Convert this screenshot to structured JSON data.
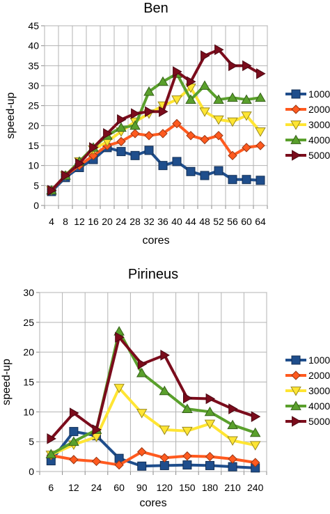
{
  "chart_data": [
    {
      "type": "line",
      "title": "Ben",
      "xlabel": "cores",
      "ylabel": "speed-up",
      "ylim": [
        0,
        45
      ],
      "ytick_step": 5,
      "grid": true,
      "legend_position": "right",
      "categories": [
        "4",
        "8",
        "12",
        "16",
        "20",
        "24",
        "28",
        "32",
        "36",
        "40",
        "44",
        "48",
        "52",
        "56",
        "60",
        "64"
      ],
      "series": [
        {
          "name": "1000",
          "color": "#1f4e8c",
          "marker": "square",
          "values": [
            3.5,
            7,
            9.5,
            11.5,
            14.5,
            13.5,
            12.5,
            13.8,
            10,
            11,
            8.5,
            7.5,
            8.7,
            6.5,
            6.5,
            6.3
          ]
        },
        {
          "name": "2000",
          "color": "#ff5a1f",
          "marker": "diamond",
          "values": [
            3.8,
            7.5,
            10,
            12.5,
            15,
            16,
            18,
            17.5,
            18,
            20.5,
            17.5,
            16.5,
            17.5,
            12.5,
            14.5,
            15
          ]
        },
        {
          "name": "3000",
          "color": "#ffe533",
          "marker": "triangle-down",
          "values": [
            3.8,
            7.5,
            11,
            14,
            16,
            18.5,
            21,
            23,
            25,
            26.5,
            29.5,
            23.5,
            21.5,
            21,
            22.5,
            18.5
          ]
        },
        {
          "name": "4000",
          "color": "#5aa02c",
          "marker": "triangle-up",
          "values": [
            3.8,
            7.5,
            11,
            14.5,
            17.5,
            19.5,
            20,
            28.5,
            31,
            33,
            26.5,
            30,
            26.5,
            27,
            26.5,
            27
          ]
        },
        {
          "name": "5000",
          "color": "#7b0c1c",
          "marker": "triangle-right",
          "values": [
            3.8,
            7.5,
            10.5,
            14.5,
            18,
            21.5,
            23,
            23.5,
            23.5,
            33.5,
            31,
            37.5,
            39,
            35,
            35,
            33
          ]
        }
      ]
    },
    {
      "type": "line",
      "title": "Pirineus",
      "xlabel": "cores",
      "ylabel": "speed-up",
      "ylim": [
        0,
        30
      ],
      "ytick_step": 5,
      "grid": true,
      "legend_position": "right",
      "categories": [
        "6",
        "12",
        "24",
        "60",
        "90",
        "120",
        "150",
        "180",
        "210",
        "240"
      ],
      "series": [
        {
          "name": "1000",
          "color": "#1f4e8c",
          "marker": "square",
          "values": [
            1.8,
            6.7,
            6,
            2.2,
            0.9,
            1,
            1.1,
            1,
            0.8,
            0.6
          ]
        },
        {
          "name": "2000",
          "color": "#ff5a1f",
          "marker": "diamond",
          "values": [
            2.7,
            2,
            1.7,
            1.1,
            3.3,
            2.3,
            2.6,
            2.5,
            2.1,
            1.5
          ]
        },
        {
          "name": "3000",
          "color": "#ffe533",
          "marker": "triangle-down",
          "values": [
            2.8,
            4.5,
            5.8,
            14,
            9.8,
            7,
            6.8,
            8,
            5.2,
            4.4
          ]
        },
        {
          "name": "4000",
          "color": "#5aa02c",
          "marker": "triangle-up",
          "values": [
            2.9,
            5,
            7,
            23.5,
            16.5,
            13.5,
            10.5,
            10,
            7.8,
            6.5
          ]
        },
        {
          "name": "5000",
          "color": "#7b0c1c",
          "marker": "triangle-right",
          "values": [
            5.5,
            9.8,
            7,
            22.5,
            18,
            19.5,
            12.3,
            12.2,
            10.5,
            9.2
          ]
        }
      ]
    }
  ]
}
